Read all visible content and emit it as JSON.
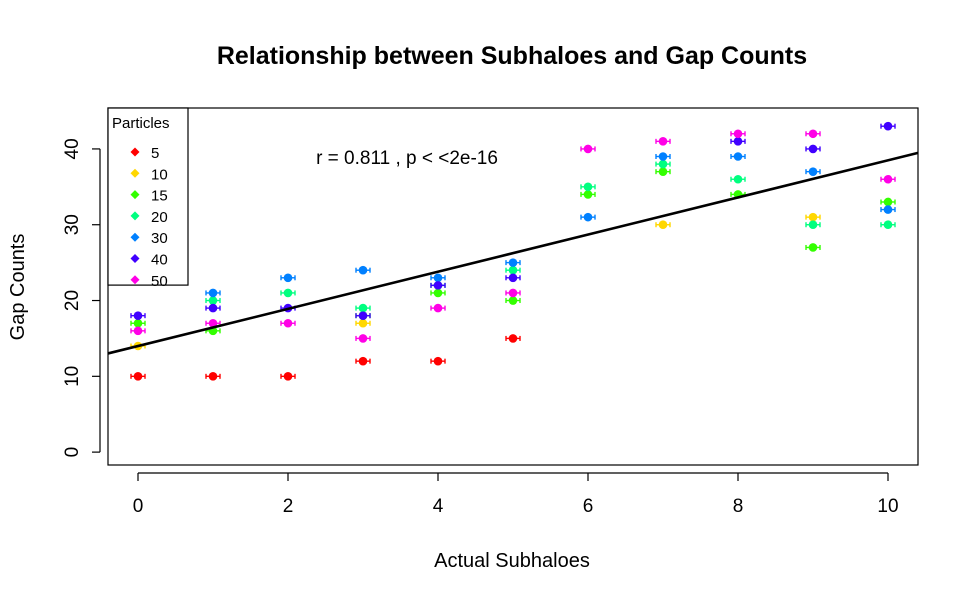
{
  "chart_data": {
    "type": "scatter",
    "title": "Relationship between Subhaloes and Gap Counts",
    "xlabel": "Actual Subhaloes",
    "ylabel": "Gap Counts",
    "xlim": [
      -0.4,
      10.4
    ],
    "ylim": [
      -1.7,
      45.4
    ],
    "xticks": [
      0,
      2,
      4,
      6,
      8,
      10
    ],
    "yticks": [
      0,
      10,
      20,
      30,
      40
    ],
    "annotation": "r = 0.811 , p < <2e-16",
    "regression_line": {
      "intercept": 14.0,
      "slope": 2.45
    },
    "legend": {
      "title": "Particles",
      "position": "top-left"
    },
    "series": [
      {
        "name": "5",
        "color": "#FF0000",
        "x": [
          0,
          1,
          2,
          3,
          4,
          5
        ],
        "y": [
          10,
          10,
          10,
          12,
          12,
          15
        ]
      },
      {
        "name": "10",
        "color": "#FFD700",
        "x": [
          0,
          3,
          7,
          9
        ],
        "y": [
          14,
          17,
          30,
          31
        ]
      },
      {
        "name": "15",
        "color": "#33FF00",
        "x": [
          0,
          1,
          3,
          4,
          5,
          6,
          7,
          8,
          9,
          10
        ],
        "y": [
          17,
          16,
          18,
          21,
          20,
          34,
          37,
          34,
          27,
          33
        ]
      },
      {
        "name": "20",
        "color": "#00FF7F",
        "x": [
          1,
          2,
          3,
          4,
          5,
          6,
          7,
          8,
          9,
          10
        ],
        "y": [
          20,
          21,
          19,
          22,
          24,
          35,
          38,
          36,
          30,
          30
        ]
      },
      {
        "name": "30",
        "color": "#0080FF",
        "x": [
          1,
          2,
          3,
          4,
          5,
          6,
          7,
          8,
          9,
          10
        ],
        "y": [
          21,
          23,
          24,
          23,
          25,
          31,
          39,
          39,
          37,
          32
        ]
      },
      {
        "name": "40",
        "color": "#4000FF",
        "x": [
          0,
          1,
          2,
          3,
          4,
          5,
          8,
          9,
          10
        ],
        "y": [
          18,
          19,
          19,
          18,
          22,
          23,
          41,
          40,
          43
        ]
      },
      {
        "name": "50",
        "color": "#FF00E6",
        "x": [
          0,
          1,
          2,
          3,
          4,
          5,
          6,
          7,
          8,
          9,
          10
        ],
        "y": [
          16,
          17,
          17,
          15,
          19,
          21,
          40,
          41,
          42,
          42,
          36
        ]
      }
    ]
  }
}
